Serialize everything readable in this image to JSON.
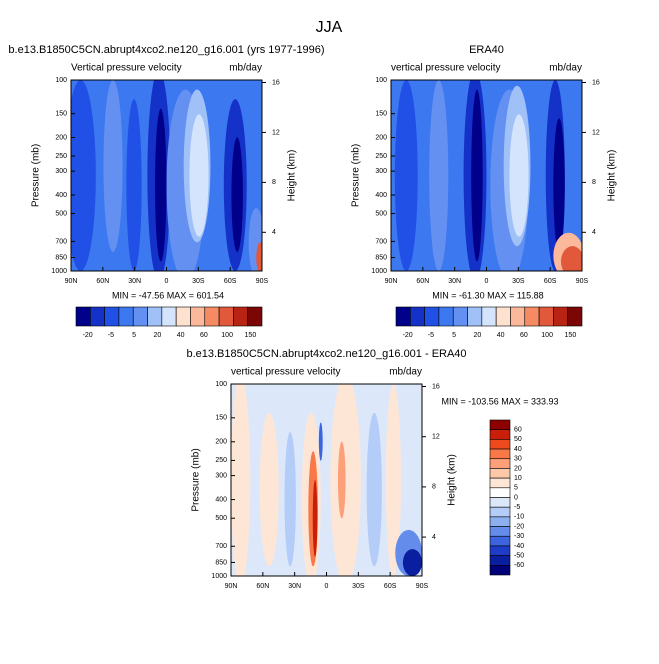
{
  "title": "JJA",
  "chart_data": [
    {
      "type": "contour",
      "title": "b.e13.B1850C5CN.abrupt4xco2.ne120_g16.001 (yrs 1977-1996)",
      "left_label": "Vertical pressure velocity",
      "right_label": "mb/day",
      "ylabel": "Pressure (mb)",
      "y2label": "Height (km)",
      "ylog": true,
      "ylim": [
        100,
        1000
      ],
      "yticks": [
        100,
        150,
        200,
        250,
        300,
        400,
        500,
        700,
        850,
        1000
      ],
      "y2lim": [
        0.9,
        16.2
      ],
      "y2ticks": [
        4,
        8,
        12,
        16
      ],
      "xlim": [
        90,
        -90
      ],
      "xticks": [
        {
          "value": 90,
          "label": "90N"
        },
        {
          "value": 60,
          "label": "60N"
        },
        {
          "value": 30,
          "label": "30N"
        },
        0,
        {
          "value": -30,
          "label": "30S"
        },
        {
          "value": -60,
          "label": "60S"
        },
        {
          "value": -90,
          "label": "90S"
        }
      ],
      "stats": "MIN = -47.56  MAX = 601.54",
      "colorbar_colors": [
        "#00008b",
        "#1432c8",
        "#2050e6",
        "#3c78f0",
        "#6490f2",
        "#a0c0f8",
        "#d4e4fc",
        "#fde2d0",
        "#fcb89a",
        "#f68a62",
        "#e2583a",
        "#b82414",
        "#7a0606"
      ],
      "colorbar_ticks": [
        -20,
        -5,
        5,
        20,
        40,
        60,
        100,
        150
      ]
    },
    {
      "type": "contour",
      "title": "ERA40",
      "left_label": "vertical pressure velocity",
      "right_label": "mb/day",
      "ylabel": "Pressure (mb)",
      "y2label": "Height (km)",
      "ylog": true,
      "ylim": [
        100,
        1000
      ],
      "yticks": [
        100,
        150,
        200,
        250,
        300,
        400,
        500,
        700,
        850,
        1000
      ],
      "y2lim": [
        0.9,
        16.2
      ],
      "y2ticks": [
        4,
        8,
        12,
        16
      ],
      "xlim": [
        90,
        -90
      ],
      "xticks": [
        {
          "value": 90,
          "label": "90N"
        },
        {
          "value": 60,
          "label": "60N"
        },
        {
          "value": 30,
          "label": "30N"
        },
        0,
        {
          "value": -30,
          "label": "30S"
        },
        {
          "value": -60,
          "label": "60S"
        },
        {
          "value": -90,
          "label": "90S"
        }
      ],
      "stats": "MIN = -61.30  MAX = 115.88",
      "colorbar_colors": [
        "#00008b",
        "#1432c8",
        "#2050e6",
        "#3c78f0",
        "#6490f2",
        "#a0c0f8",
        "#d4e4fc",
        "#fde2d0",
        "#fcb89a",
        "#f68a62",
        "#e2583a",
        "#b82414",
        "#7a0606"
      ],
      "colorbar_ticks": [
        -20,
        -5,
        5,
        20,
        40,
        60,
        100,
        150
      ]
    },
    {
      "type": "contour",
      "title": "b.e13.B1850C5CN.abrupt4xco2.ne120_g16.001 - ERA40",
      "left_label": "vertical pressure velocity",
      "right_label": "mb/day",
      "ylabel": "Pressure (mb)",
      "y2label": "Height (km)",
      "ylog": true,
      "ylim": [
        100,
        1000
      ],
      "yticks": [
        100,
        150,
        200,
        250,
        300,
        400,
        500,
        700,
        850,
        1000
      ],
      "y2lim": [
        0.9,
        16.2
      ],
      "y2ticks": [
        4,
        8,
        12,
        16
      ],
      "xlim": [
        90,
        -90
      ],
      "xticks": [
        {
          "value": 90,
          "label": "90N"
        },
        {
          "value": 60,
          "label": "60N"
        },
        {
          "value": 30,
          "label": "30N"
        },
        0,
        {
          "value": -30,
          "label": "30S"
        },
        {
          "value": -60,
          "label": "60S"
        },
        {
          "value": -90,
          "label": "90S"
        }
      ],
      "stats": "MIN = -103.56  MAX = 333.93",
      "colorbar_colors": [
        "#8c0000",
        "#c81e0a",
        "#ee4a1e",
        "#f87848",
        "#fca07a",
        "#fdc8a8",
        "#fee6d6",
        "#ffffff",
        "#dce8fa",
        "#b4cdf8",
        "#8caff0",
        "#648cea",
        "#3c64dc",
        "#1e3cc8",
        "#0a1ea0",
        "#000078"
      ],
      "colorbar_ticks": [
        60,
        50,
        40,
        30,
        20,
        10,
        5,
        0,
        -5,
        -10,
        -20,
        -30,
        -40,
        -50,
        -60
      ]
    }
  ]
}
